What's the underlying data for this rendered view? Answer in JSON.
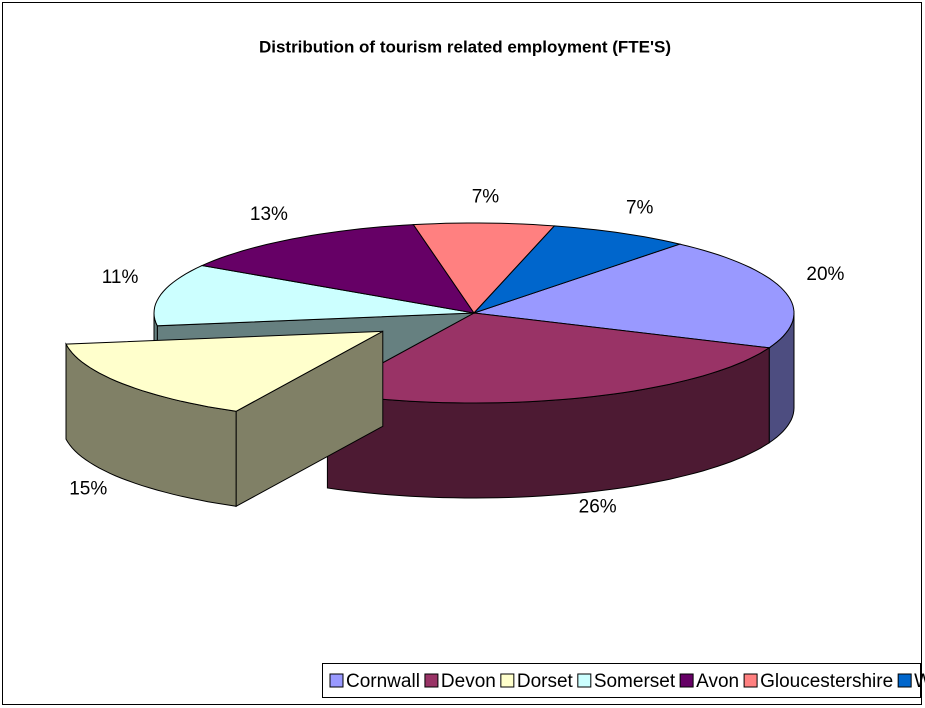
{
  "chart_data": {
    "type": "pie",
    "title": "Distribution of tourism related employment (FTE'S)",
    "categories": [
      "Cornwall",
      "Devon",
      "Dorset",
      "Somerset",
      "Avon",
      "Gloucestershire",
      "Wilts"
    ],
    "values": [
      20,
      26,
      15,
      11,
      13,
      7,
      7
    ],
    "value_labels": [
      "20%",
      "26%",
      "15%",
      "11%",
      "13%",
      "7%",
      "7%"
    ],
    "colors": [
      "#9999ff",
      "#993366",
      "#ffffcc",
      "#ccffff",
      "#660066",
      "#ff8080",
      "#0066cc"
    ],
    "exploded": "Dorset",
    "legend": "bottom"
  }
}
